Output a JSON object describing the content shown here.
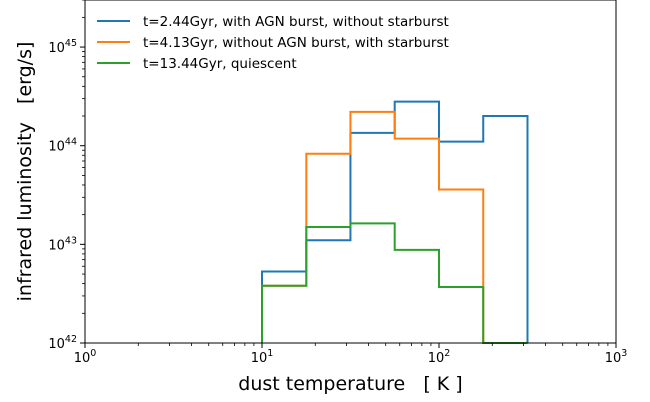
{
  "chart_data": {
    "type": "line",
    "subtype": "step-histogram",
    "xlabel": "dust temperature   [ K ]",
    "ylabel": "infrared luminosity   [erg/s]",
    "xscale": "log",
    "yscale": "log",
    "xlim": [
      1,
      1000
    ],
    "ylim": [
      1e+42,
      3e+45
    ],
    "x_ticks": [
      {
        "value": 1,
        "base": "10",
        "exp": "0"
      },
      {
        "value": 10,
        "base": "10",
        "exp": "1"
      },
      {
        "value": 100,
        "base": "10",
        "exp": "2"
      },
      {
        "value": 1000,
        "base": "10",
        "exp": "3"
      }
    ],
    "y_ticks": [
      {
        "value": 1e+42,
        "base": "10",
        "exp": "42"
      },
      {
        "value": 1e+43,
        "base": "10",
        "exp": "43"
      },
      {
        "value": 1e+44,
        "base": "10",
        "exp": "44"
      },
      {
        "value": 1e+45,
        "base": "10",
        "exp": "45"
      }
    ],
    "bin_edges": [
      10,
      17.8,
      31.6,
      56.2,
      100,
      177.8,
      316.2
    ],
    "legend_position": "top-left",
    "series": [
      {
        "name": "t=2.44Gyr, with AGN burst, without starburst",
        "color": "#1f77b4",
        "values": [
          5.3e+42,
          1.1e+43,
          1.35e+44,
          2.8e+44,
          1.1e+44,
          2e+44
        ]
      },
      {
        "name": "t=4.13Gyr, without AGN burst, with starburst",
        "color": "#ff7f0e",
        "values": [
          3.8e+42,
          8.3e+43,
          2.2e+44,
          1.18e+44,
          3.6e+43,
          0
        ]
      },
      {
        "name": "t=13.44Gyr, quiescent",
        "color": "#2ca02c",
        "values": [
          3.8e+42,
          1.5e+43,
          1.63e+43,
          8.8e+42,
          3.7e+42,
          0
        ]
      }
    ]
  }
}
